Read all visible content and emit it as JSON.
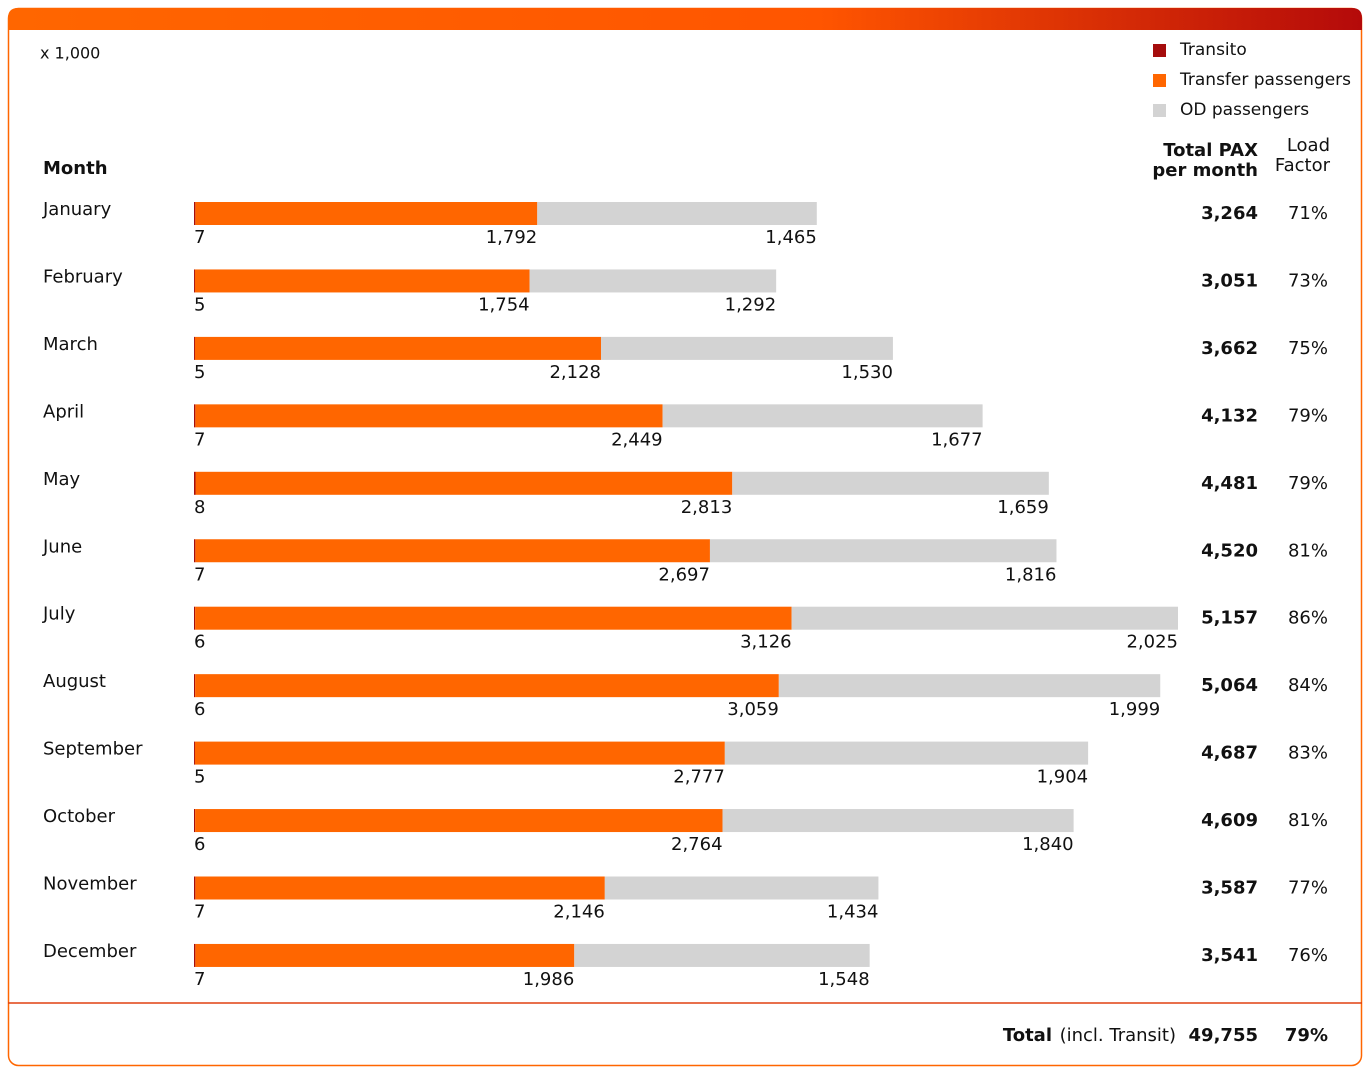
{
  "chart_data": {
    "type": "bar",
    "unit_note": "x 1,000",
    "category_label": "Month",
    "categories": [
      "January",
      "February",
      "March",
      "April",
      "May",
      "June",
      "July",
      "August",
      "September",
      "October",
      "November",
      "December"
    ],
    "series": [
      {
        "name": "Transito",
        "color": "#a50d0d",
        "values": [
          7,
          5,
          5,
          7,
          8,
          7,
          6,
          6,
          5,
          6,
          7,
          7
        ],
        "value_labels": [
          "7",
          "5",
          "5",
          "7",
          "8",
          "7",
          "6",
          "6",
          "5",
          "6",
          "7",
          "7"
        ]
      },
      {
        "name": "Transfer passengers",
        "color": "#ff6600",
        "values": [
          1792,
          1754,
          2128,
          2449,
          2813,
          2697,
          3126,
          3059,
          2777,
          2764,
          2146,
          1986
        ],
        "value_labels": [
          "1,792",
          "1,754",
          "2,128",
          "2,449",
          "2,813",
          "2,697",
          "3,126",
          "3,059",
          "2,777",
          "2,764",
          "2,146",
          "1,986"
        ]
      },
      {
        "name": "OD passengers",
        "color": "#d3d3d3",
        "values": [
          1465,
          1292,
          1530,
          1677,
          1659,
          1816,
          2025,
          1999,
          1904,
          1840,
          1434,
          1548
        ],
        "value_labels": [
          "1,465",
          "1,292",
          "1,530",
          "1,677",
          "1,659",
          "1,816",
          "2,025",
          "1,999",
          "1,904",
          "1,840",
          "1,434",
          "1,548"
        ]
      }
    ],
    "totals": {
      "label": "Total PAX per month",
      "values": [
        3264,
        3051,
        3662,
        4132,
        4481,
        4520,
        5157,
        5064,
        4687,
        4609,
        3587,
        3541
      ],
      "value_labels": [
        "3,264",
        "3,051",
        "3,662",
        "4,132",
        "4,481",
        "4,520",
        "5,157",
        "5,064",
        "4,687",
        "4,609",
        "3,587",
        "3,541"
      ]
    },
    "load_factor": {
      "label": "Load Factor",
      "values": [
        71,
        73,
        75,
        79,
        79,
        81,
        86,
        84,
        83,
        81,
        77,
        76
      ],
      "value_labels": [
        "71%",
        "73%",
        "75%",
        "79%",
        "79%",
        "81%",
        "86%",
        "84%",
        "83%",
        "81%",
        "77%",
        "76%"
      ]
    },
    "footer": {
      "label": "Total",
      "note": "(incl. Transit)",
      "total": {
        "value": 49755,
        "label": "49,755"
      },
      "load_factor": {
        "value": 79,
        "label": "79%"
      }
    }
  }
}
